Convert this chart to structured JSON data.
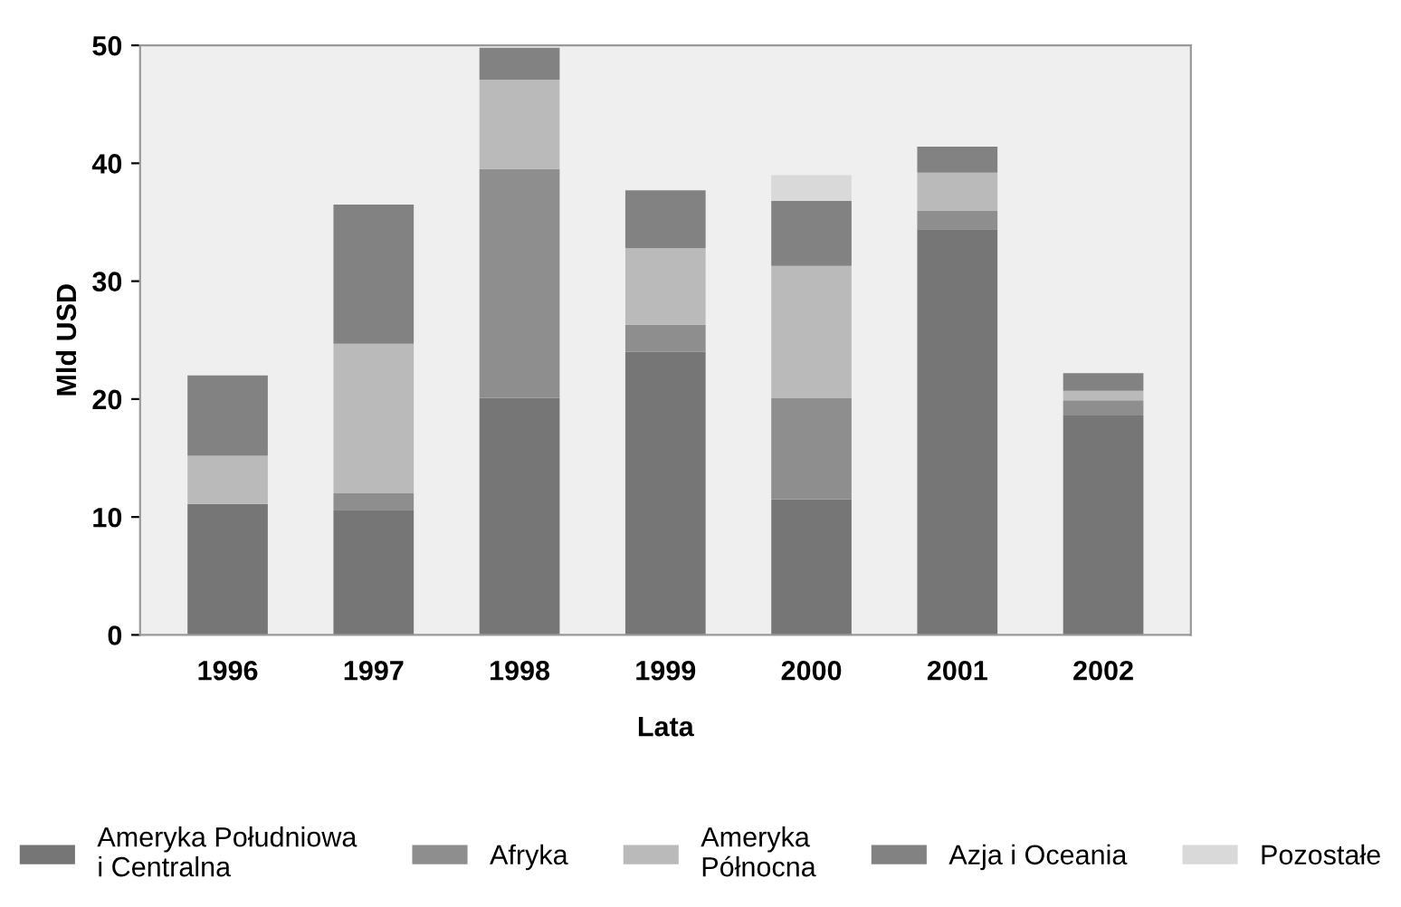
{
  "chart_data": {
    "type": "bar",
    "stacked": true,
    "xlabel": "Lata",
    "ylabel": "Mld USD",
    "categories": [
      "1996",
      "1997",
      "1998",
      "1999",
      "2000",
      "2001",
      "2002"
    ],
    "series": [
      {
        "name": "Ameryka Południowa\ni Centralna",
        "color": "#767676",
        "values": [
          11.1,
          10.6,
          20.1,
          24.0,
          11.5,
          34.4,
          18.6
        ]
      },
      {
        "name": "Afryka",
        "color": "#8e8e8e",
        "values": [
          0,
          1.4,
          19.4,
          2.3,
          8.6,
          1.6,
          1.3
        ]
      },
      {
        "name": "Ameryka\nPółnocna",
        "color": "#bababa",
        "values": [
          4.1,
          12.7,
          7.6,
          6.5,
          11.2,
          3.2,
          0.8
        ]
      },
      {
        "name": "Azja i Oceania",
        "color": "#828282",
        "values": [
          6.8,
          11.8,
          2.7,
          4.9,
          5.5,
          2.2,
          1.5
        ]
      },
      {
        "name": "Pozostałe",
        "color": "#d9d9d9",
        "values": [
          0,
          0,
          0,
          0,
          2.2,
          0,
          0
        ]
      }
    ],
    "ylim": [
      0,
      50
    ],
    "yticks": [
      0,
      10,
      20,
      30,
      40,
      50
    ],
    "grid": false,
    "legend": "bottom"
  }
}
